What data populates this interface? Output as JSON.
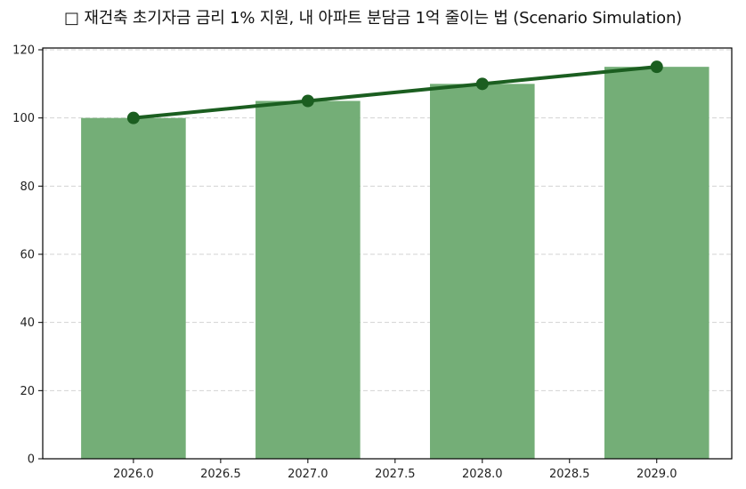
{
  "title": "□ 재건축 초기자금 금리 1% 지원, 내 아파트 분담금 1억 줄이는 법 (Scenario Simulation)",
  "colors": {
    "bar": "#74ae77",
    "line": "#1b5e20",
    "grid": "#d3d3d3",
    "axis": "#000000"
  },
  "chart_data": {
    "type": "bar",
    "title": "□ 재건축 초기자금 금리 1% 지원, 내 아파트 분담금 1억 줄이는 법 (Scenario Simulation)",
    "xlabel": "",
    "ylabel": "",
    "x": [
      2026,
      2027,
      2028,
      2029
    ],
    "series": [
      {
        "name": "bar",
        "type": "bar",
        "values": [
          100,
          105,
          110,
          115
        ]
      },
      {
        "name": "line",
        "type": "line",
        "marker": "circle",
        "values": [
          100,
          105,
          110,
          115
        ]
      }
    ],
    "xlim": [
      2025.48,
      2029.43
    ],
    "ylim": [
      0,
      120
    ],
    "x_ticks": [
      "2026.0",
      "2026.5",
      "2027.0",
      "2027.5",
      "2028.0",
      "2028.5",
      "2029.0"
    ],
    "y_ticks": [
      "0",
      "20",
      "40",
      "60",
      "80",
      "100",
      "120"
    ],
    "bar_width": 0.6,
    "grid": {
      "y": true,
      "x": false,
      "style": "dashed"
    },
    "legend": null
  }
}
